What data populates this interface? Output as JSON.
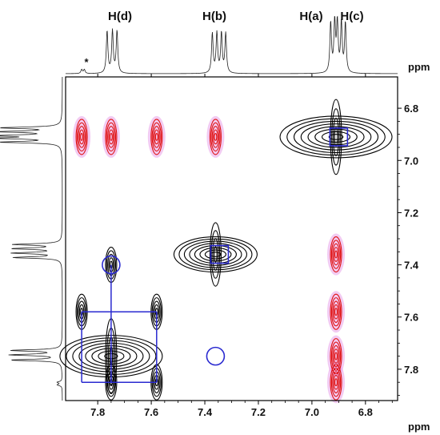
{
  "chart_data": {
    "type": "2D NMR contour plot (COSY/NOESY overlay)",
    "peak_labels": [
      {
        "text": "H(d)",
        "ppm": 7.75
      },
      {
        "text": "H(b)",
        "ppm": 7.36
      },
      {
        "text": "H(a)",
        "ppm": 6.96
      },
      {
        "text": "H(c)",
        "ppm": 6.85
      }
    ],
    "impurity_marker": {
      "text": "*",
      "ppm": 7.86
    },
    "x_axis": {
      "unit": "ppm",
      "range": [
        7.92,
        6.68
      ],
      "ticks": [
        "7.8",
        "7.6",
        "7.4",
        "7.2",
        "7.0",
        "6.8"
      ],
      "tick_values": [
        7.8,
        7.6,
        7.4,
        7.2,
        7.0,
        6.8
      ]
    },
    "y_axis": {
      "unit": "ppm",
      "range": [
        6.68,
        7.92
      ],
      "ticks": [
        "6.8",
        "7.0",
        "7.2",
        "7.4",
        "7.6",
        "7.8"
      ],
      "tick_values": [
        6.8,
        7.0,
        7.2,
        7.4,
        7.6,
        7.8
      ]
    },
    "spectrum_1d": {
      "multiplets": [
        {
          "label": "H(d)",
          "ppm": [
            7.765,
            7.745,
            7.728
          ],
          "height": 0.85
        },
        {
          "label": "H(b)",
          "ppm": [
            7.372,
            7.355,
            7.338,
            7.322
          ],
          "height": 0.8
        },
        {
          "label": "H(a)+H(c)",
          "ppm": [
            6.93,
            6.915,
            6.905,
            6.89,
            6.875
          ],
          "height": 1.0
        },
        {
          "label": "*",
          "ppm": [
            7.86,
            7.85
          ],
          "height": 0.08
        }
      ]
    },
    "cross_peaks": [
      {
        "x": 6.91,
        "y": 6.91,
        "color": "black",
        "kind": "diagonal"
      },
      {
        "x": 7.36,
        "y": 7.36,
        "color": "black",
        "kind": "diagonal"
      },
      {
        "x": 7.75,
        "y": 7.75,
        "color": "black",
        "kind": "diagonal"
      },
      {
        "x": 7.75,
        "y": 7.4,
        "color": "black",
        "kind": "cross"
      },
      {
        "x": 7.75,
        "y": 7.85,
        "color": "black",
        "kind": "cross"
      },
      {
        "x": 7.86,
        "y": 7.58,
        "color": "black",
        "kind": "cross"
      },
      {
        "x": 7.58,
        "y": 7.58,
        "color": "black",
        "kind": "cross"
      },
      {
        "x": 7.58,
        "y": 7.85,
        "color": "black",
        "kind": "cross"
      },
      {
        "x": 7.75,
        "y": 6.91,
        "color": "red",
        "kind": "cross"
      },
      {
        "x": 7.36,
        "y": 6.91,
        "color": "red",
        "kind": "cross"
      },
      {
        "x": 7.58,
        "y": 6.91,
        "color": "red",
        "kind": "cross"
      },
      {
        "x": 7.86,
        "y": 6.91,
        "color": "red",
        "kind": "cross"
      },
      {
        "x": 6.91,
        "y": 7.36,
        "color": "red",
        "kind": "cross"
      },
      {
        "x": 6.91,
        "y": 7.75,
        "color": "red",
        "kind": "cross"
      },
      {
        "x": 6.91,
        "y": 7.58,
        "color": "red",
        "kind": "cross"
      },
      {
        "x": 6.91,
        "y": 7.85,
        "color": "red",
        "kind": "cross"
      }
    ],
    "markers": [
      {
        "shape": "square",
        "x": 6.9,
        "y": 6.91
      },
      {
        "shape": "square",
        "x": 7.345,
        "y": 7.36
      },
      {
        "shape": "circle",
        "x": 7.75,
        "y": 7.4
      },
      {
        "shape": "circle",
        "x": 7.36,
        "y": 7.75
      }
    ],
    "colors": {
      "noesy_positive": "#e01010",
      "noesy_halo": "#e8a0e8",
      "cosy": "#000000",
      "markers": "#2a2ad0"
    }
  }
}
